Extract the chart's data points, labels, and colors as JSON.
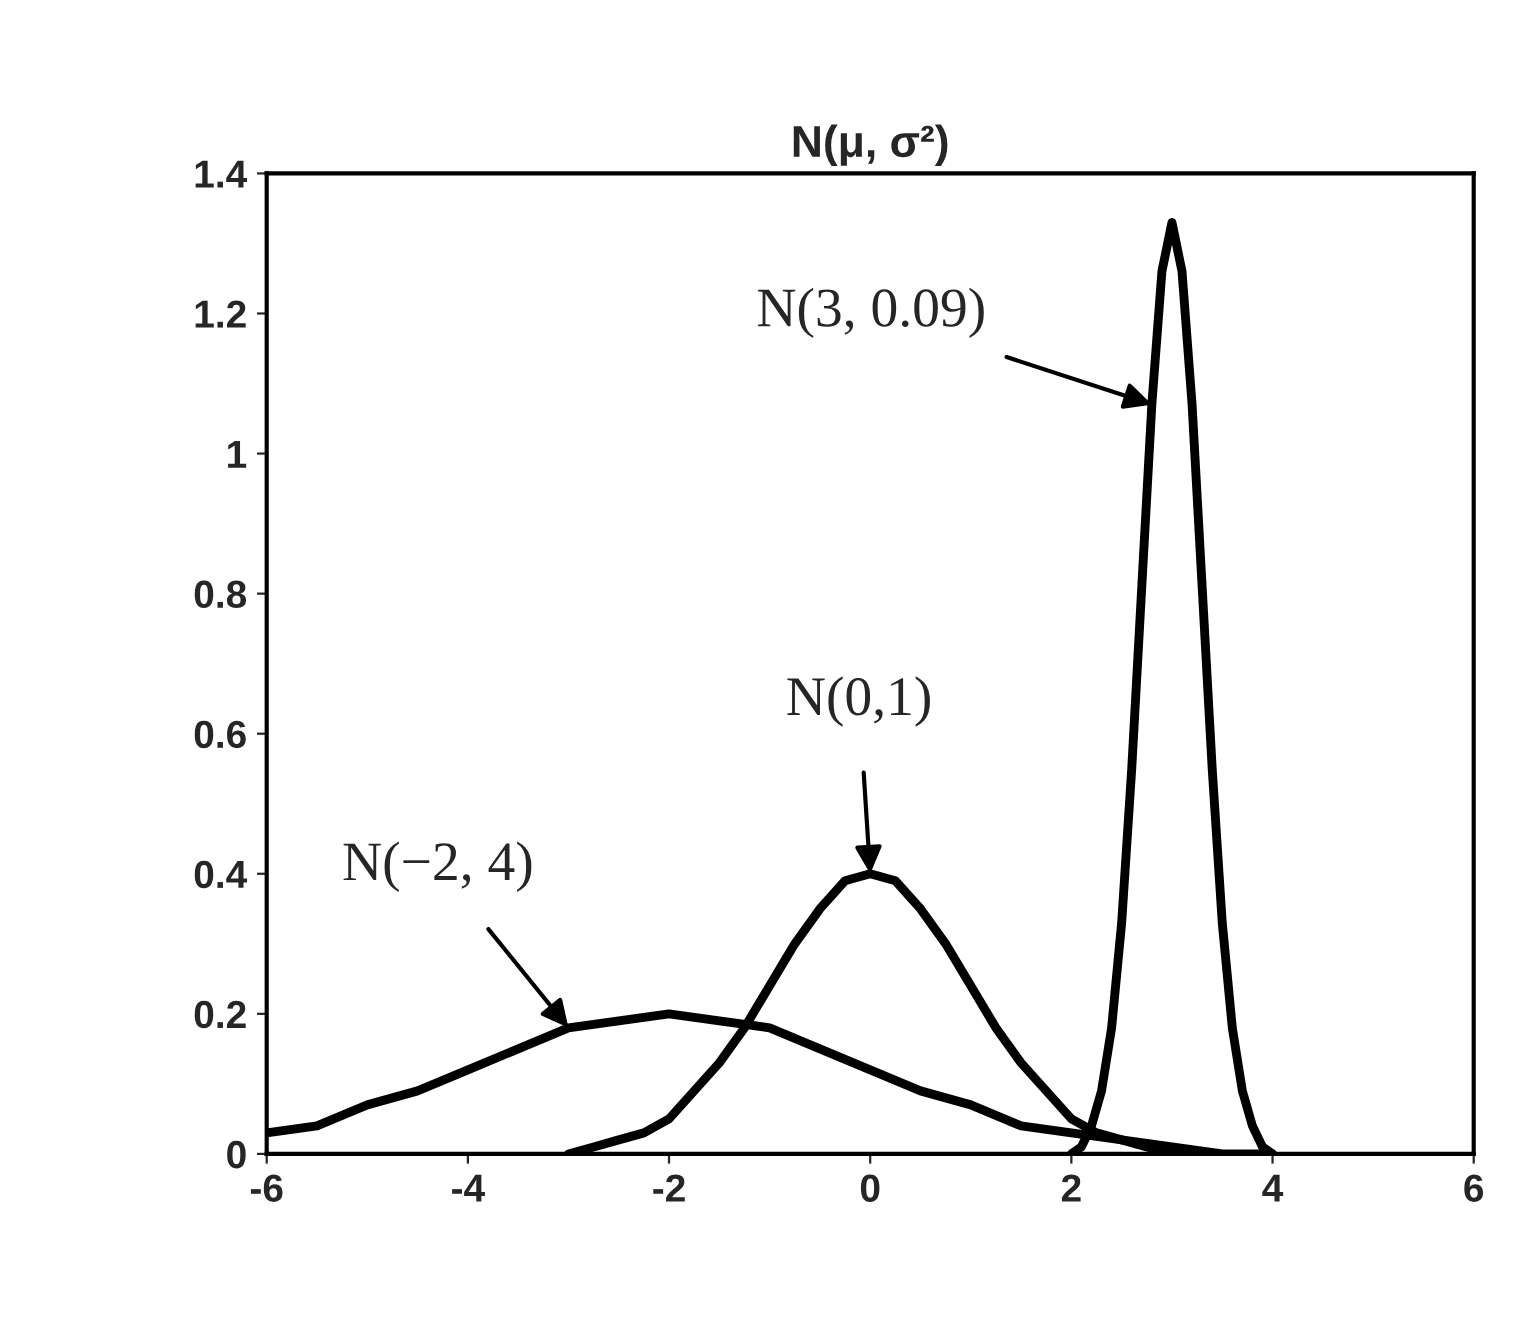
{
  "chart_data": {
    "type": "line",
    "title": "N(μ, σ²)",
    "series": [
      {
        "color": "#000000",
        "x": [
          -6,
          -5.5,
          -5,
          -4.5,
          -4,
          -3.5,
          -3,
          -2.5,
          -2,
          -1.5,
          -1,
          -0.5,
          0,
          0.5,
          1,
          1.5,
          2,
          2.5,
          3,
          3.5,
          4
        ],
        "values": [
          0.03,
          0.04,
          0.07,
          0.09,
          0.12,
          0.15,
          0.18,
          0.19,
          0.2,
          0.19,
          0.18,
          0.15,
          0.12,
          0.09,
          0.07,
          0.04,
          0.03,
          0.02,
          0.01,
          0.0,
          0.0
        ]
      },
      {
        "color": "#000000",
        "x": [
          -3,
          -2.75,
          -2.5,
          -2.25,
          -2,
          -1.75,
          -1.5,
          -1.25,
          -1,
          -0.75,
          -0.5,
          -0.25,
          0,
          0.25,
          0.5,
          0.75,
          1,
          1.25,
          1.5,
          1.75,
          2,
          2.25,
          2.5,
          2.75,
          3
        ],
        "values": [
          0.0,
          0.01,
          0.02,
          0.03,
          0.05,
          0.09,
          0.13,
          0.18,
          0.24,
          0.3,
          0.35,
          0.39,
          0.4,
          0.39,
          0.35,
          0.3,
          0.24,
          0.18,
          0.13,
          0.09,
          0.05,
          0.03,
          0.02,
          0.01,
          0.0
        ]
      },
      {
        "color": "#000000",
        "x": [
          2,
          2.1,
          2.2,
          2.3,
          2.4,
          2.5,
          2.6,
          2.7,
          2.8,
          2.9,
          3,
          3.1,
          3.2,
          3.3,
          3.4,
          3.5,
          3.6,
          3.7,
          3.8,
          3.9,
          4
        ],
        "values": [
          0.0,
          0.01,
          0.04,
          0.09,
          0.18,
          0.33,
          0.55,
          0.81,
          1.07,
          1.26,
          1.33,
          1.26,
          1.07,
          0.81,
          0.55,
          0.33,
          0.18,
          0.09,
          0.04,
          0.01,
          0.0
        ]
      }
    ],
    "annotations": [
      {
        "text": "N(3, 0.09)",
        "x": 2.8,
        "y": 1.07
      },
      {
        "text": "N(0,1)",
        "x": 0,
        "y": 0.4
      },
      {
        "text": "N(−2, 4)",
        "x": -3,
        "y": 0.18
      }
    ],
    "xlim": [
      -6,
      6
    ],
    "xticks": [
      -6,
      -4,
      -2,
      0,
      2,
      4,
      6
    ],
    "ylim": [
      0,
      1.4
    ],
    "yticks": [
      0,
      0.2,
      0.4,
      0.6,
      0.8,
      1,
      1.2,
      1.4
    ],
    "grid": false,
    "legend": false,
    "marker": "none",
    "line_style": "solid"
  }
}
